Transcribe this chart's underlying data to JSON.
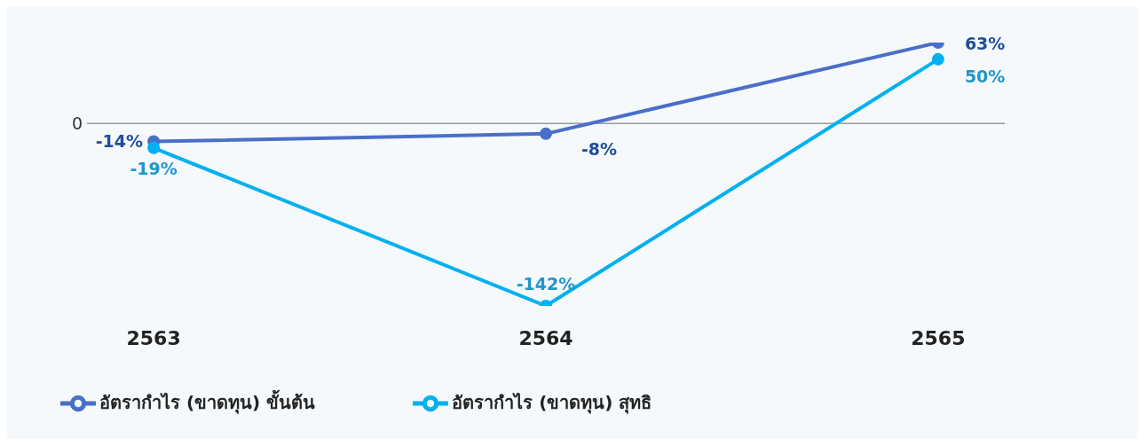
{
  "chart_data": {
    "type": "line",
    "categories": [
      "2563",
      "2564",
      "2565"
    ],
    "series": [
      {
        "name": "อัตรากำไร (ขาดทุน) ขั้นต้น",
        "color": "#4a6fc8",
        "values": [
          -14,
          -8,
          63
        ],
        "value_labels": [
          "-14%",
          "-8%",
          "63%"
        ]
      },
      {
        "name": "อัตรากำไร (ขาดทุน) สุทธิ",
        "color": "#00b0f0",
        "values": [
          -19,
          -142,
          50
        ],
        "value_labels": [
          "-19%",
          "-142%",
          "50%"
        ]
      }
    ],
    "ref_lines": [
      {
        "axis": "y",
        "value": 0,
        "label": "0"
      }
    ],
    "legend": "bottom left",
    "marker": "circle",
    "line_style": "solid"
  }
}
